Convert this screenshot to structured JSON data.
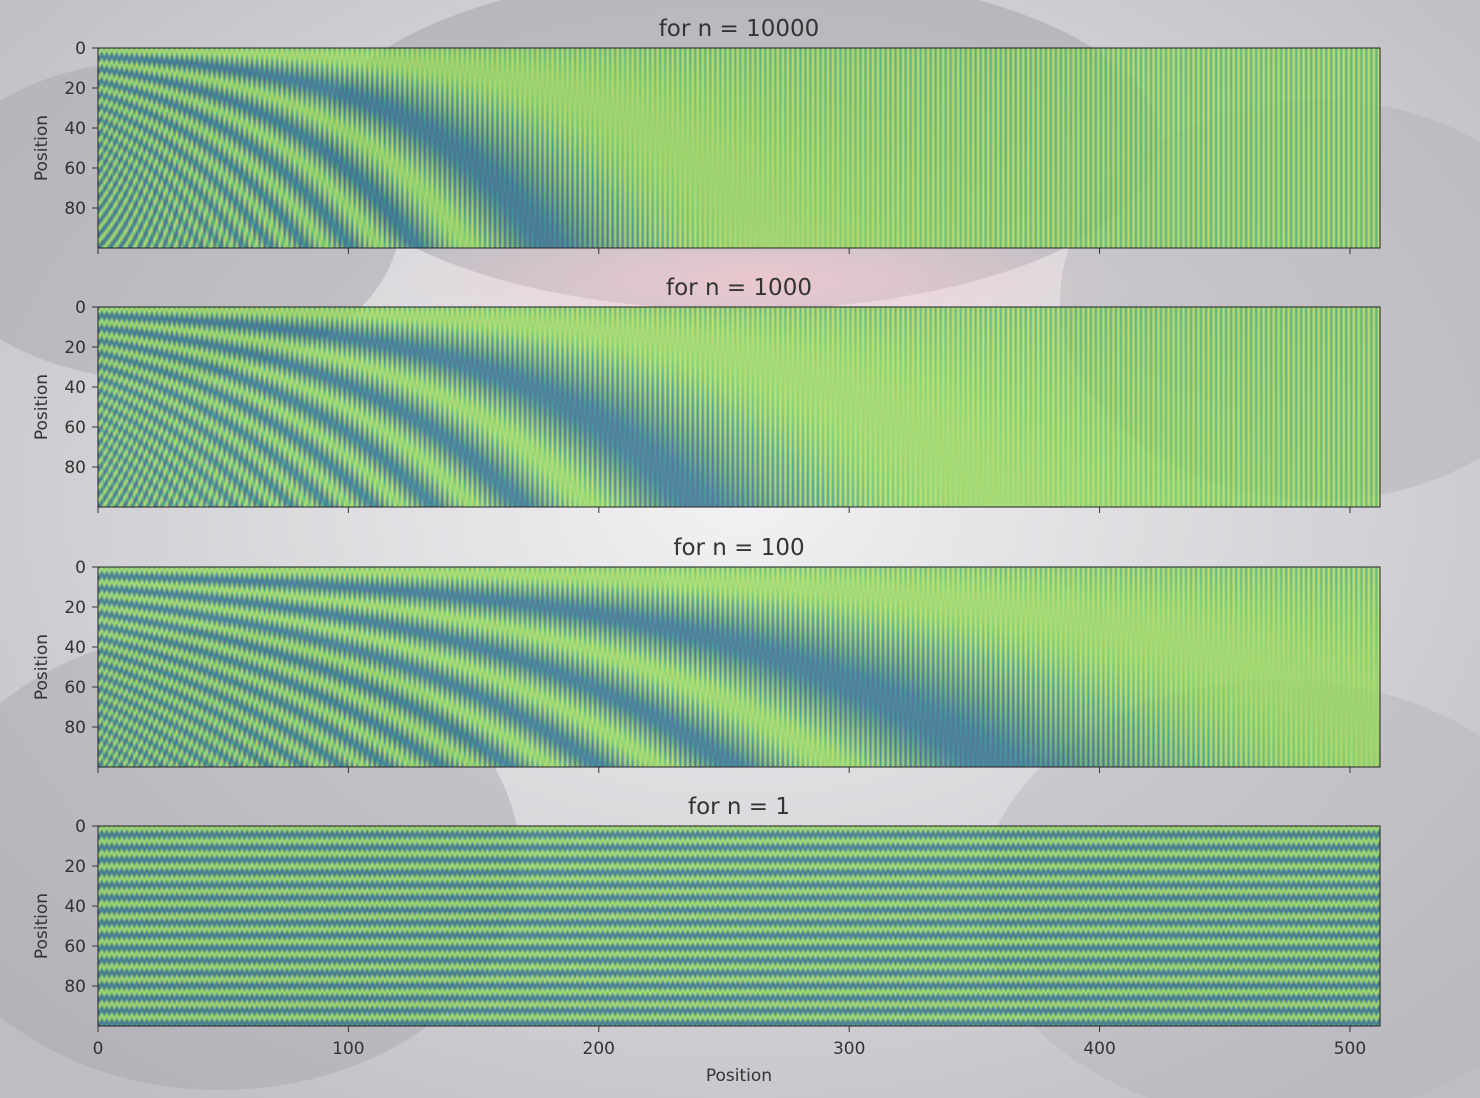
{
  "chart_data": [
    {
      "type": "heatmap",
      "title": "for n = 10000",
      "n": 10000,
      "xlabel": "",
      "ylabel": "Position",
      "xlim": [
        0,
        512
      ],
      "ylim": [
        0,
        100
      ],
      "y_inverted": true,
      "x_ticks": [
        0,
        100,
        200,
        300,
        400,
        500
      ],
      "x_tick_labels_shown": false,
      "y_ticks": [
        0,
        20,
        40,
        60,
        80
      ],
      "y_tick_labels": [
        "0",
        "20",
        "40",
        "60",
        "80"
      ],
      "colormap": "viridis"
    },
    {
      "type": "heatmap",
      "title": "for n = 1000",
      "n": 1000,
      "xlabel": "",
      "ylabel": "Position",
      "xlim": [
        0,
        512
      ],
      "ylim": [
        0,
        100
      ],
      "y_inverted": true,
      "x_ticks": [
        0,
        100,
        200,
        300,
        400,
        500
      ],
      "x_tick_labels_shown": false,
      "y_ticks": [
        0,
        20,
        40,
        60,
        80
      ],
      "y_tick_labels": [
        "0",
        "20",
        "40",
        "60",
        "80"
      ],
      "colormap": "viridis"
    },
    {
      "type": "heatmap",
      "title": "for n = 100",
      "n": 100,
      "xlabel": "",
      "ylabel": "Position",
      "xlim": [
        0,
        512
      ],
      "ylim": [
        0,
        100
      ],
      "y_inverted": true,
      "x_ticks": [
        0,
        100,
        200,
        300,
        400,
        500
      ],
      "x_tick_labels_shown": false,
      "y_ticks": [
        0,
        20,
        40,
        60,
        80
      ],
      "y_tick_labels": [
        "0",
        "20",
        "40",
        "60",
        "80"
      ],
      "colormap": "viridis"
    },
    {
      "type": "heatmap",
      "title": "for n = 1",
      "n": 1,
      "xlabel": "Position",
      "ylabel": "Position",
      "xlim": [
        0,
        512
      ],
      "ylim": [
        0,
        100
      ],
      "y_inverted": true,
      "x_ticks": [
        0,
        100,
        200,
        300,
        400,
        500
      ],
      "x_tick_labels_shown": true,
      "x_tick_labels": [
        "0",
        "100",
        "200",
        "300",
        "400",
        "500"
      ],
      "y_ticks": [
        0,
        20,
        40,
        60,
        80
      ],
      "y_tick_labels": [
        "0",
        "20",
        "40",
        "60",
        "80"
      ],
      "colormap": "viridis"
    }
  ],
  "colors": {
    "figure_background": "#d9d9dc",
    "colormap_low": "#3b3a86",
    "colormap_mid": "#2c8c8c",
    "colormap_high": "#c8e85a",
    "axis": "#333333",
    "text": "#333333"
  }
}
